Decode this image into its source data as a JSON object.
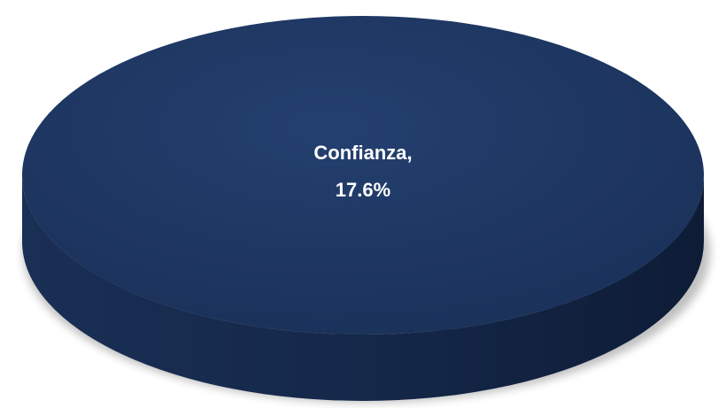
{
  "chart_data": {
    "type": "pie",
    "categories": [
      "Confianza"
    ],
    "values": [
      17.6
    ],
    "value_labels": [
      "17.6%"
    ],
    "label_separator": ",",
    "colors": [
      "#1f3864"
    ]
  }
}
